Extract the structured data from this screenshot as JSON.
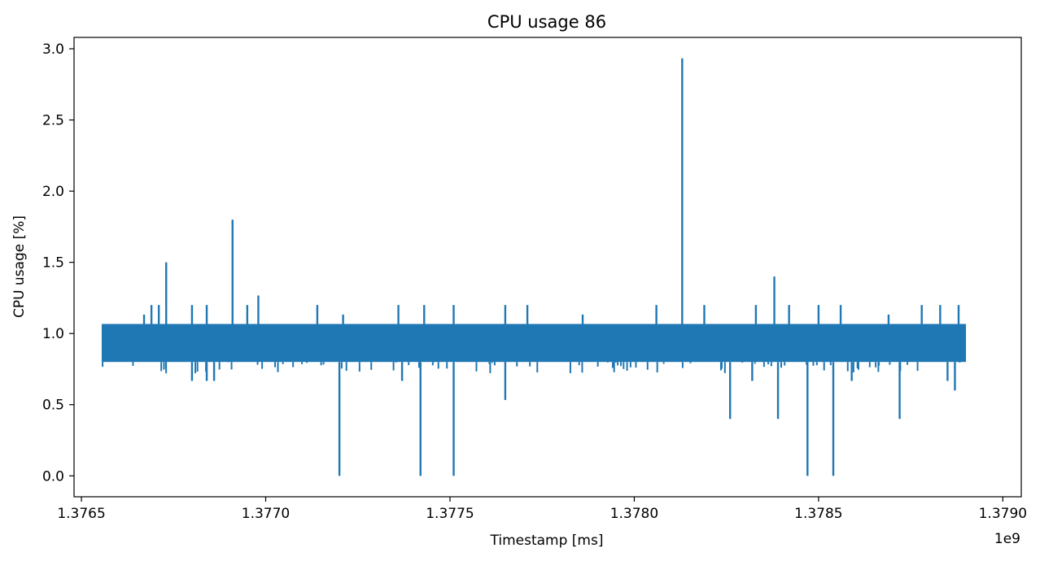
{
  "chart_data": {
    "type": "line",
    "title": "CPU usage 86",
    "xlabel": "Timestamp [ms]",
    "ylabel": "CPU usage [%]",
    "x_offset_label": "1e9",
    "xlim": [
      1.37648,
      1.37905
    ],
    "ylim": [
      -0.147,
      3.08
    ],
    "x_ticks": [
      {
        "value": 1.3765,
        "label": "1.3765"
      },
      {
        "value": 1.377,
        "label": "1.3770"
      },
      {
        "value": 1.3775,
        "label": "1.3775"
      },
      {
        "value": 1.378,
        "label": "1.3780"
      },
      {
        "value": 1.3785,
        "label": "1.3785"
      },
      {
        "value": 1.379,
        "label": "1.3790"
      }
    ],
    "y_ticks": [
      {
        "value": 0.0,
        "label": "0.0"
      },
      {
        "value": 0.5,
        "label": "0.5"
      },
      {
        "value": 1.0,
        "label": "1.0"
      },
      {
        "value": 1.5,
        "label": "1.5"
      },
      {
        "value": 2.0,
        "label": "2.0"
      },
      {
        "value": 2.5,
        "label": "2.5"
      },
      {
        "value": 3.0,
        "label": "3.0"
      }
    ],
    "grid": false,
    "color": "#1f77b4",
    "x_range": [
      1.376555,
      1.3789
    ],
    "baseline_band": [
      0.8,
      1.067
    ],
    "series": [
      {
        "name": "",
        "spikes": [
          {
            "x": 1.37673,
            "y": 1.5
          },
          {
            "x": 1.37691,
            "y": 1.8
          },
          {
            "x": 1.37698,
            "y": 1.267
          },
          {
            "x": 1.37813,
            "y": 2.933
          },
          {
            "x": 1.37838,
            "y": 1.4
          },
          {
            "x": 1.37667,
            "y": 1.133
          },
          {
            "x": 1.37669,
            "y": 1.2
          },
          {
            "x": 1.37671,
            "y": 1.2
          },
          {
            "x": 1.3768,
            "y": 1.2
          },
          {
            "x": 1.37684,
            "y": 1.2
          },
          {
            "x": 1.37695,
            "y": 1.2
          },
          {
            "x": 1.37714,
            "y": 1.2
          },
          {
            "x": 1.37721,
            "y": 1.133
          },
          {
            "x": 1.37736,
            "y": 1.2
          },
          {
            "x": 1.37743,
            "y": 1.2
          },
          {
            "x": 1.37751,
            "y": 1.2
          },
          {
            "x": 1.37765,
            "y": 1.2
          },
          {
            "x": 1.37771,
            "y": 1.2
          },
          {
            "x": 1.37786,
            "y": 1.133
          },
          {
            "x": 1.37806,
            "y": 1.2
          },
          {
            "x": 1.37819,
            "y": 1.2
          },
          {
            "x": 1.37833,
            "y": 1.2
          },
          {
            "x": 1.37842,
            "y": 1.2
          },
          {
            "x": 1.3785,
            "y": 1.2
          },
          {
            "x": 1.37856,
            "y": 1.2
          },
          {
            "x": 1.37869,
            "y": 1.133
          },
          {
            "x": 1.37878,
            "y": 1.2
          },
          {
            "x": 1.37883,
            "y": 1.2
          },
          {
            "x": 1.37888,
            "y": 1.2
          }
        ],
        "dips": [
          {
            "x": 1.3772,
            "y": 0.0
          },
          {
            "x": 1.37742,
            "y": 0.0
          },
          {
            "x": 1.37751,
            "y": 0.0
          },
          {
            "x": 1.37847,
            "y": 0.0
          },
          {
            "x": 1.37854,
            "y": 0.0
          },
          {
            "x": 1.37826,
            "y": 0.4
          },
          {
            "x": 1.37839,
            "y": 0.4
          },
          {
            "x": 1.37872,
            "y": 0.4
          },
          {
            "x": 1.37765,
            "y": 0.533
          },
          {
            "x": 1.37887,
            "y": 0.6
          },
          {
            "x": 1.3768,
            "y": 0.667
          },
          {
            "x": 1.37684,
            "y": 0.667
          },
          {
            "x": 1.37686,
            "y": 0.667
          },
          {
            "x": 1.37737,
            "y": 0.667
          },
          {
            "x": 1.37832,
            "y": 0.667
          },
          {
            "x": 1.37859,
            "y": 0.667
          },
          {
            "x": 1.37885,
            "y": 0.667
          }
        ]
      }
    ]
  }
}
